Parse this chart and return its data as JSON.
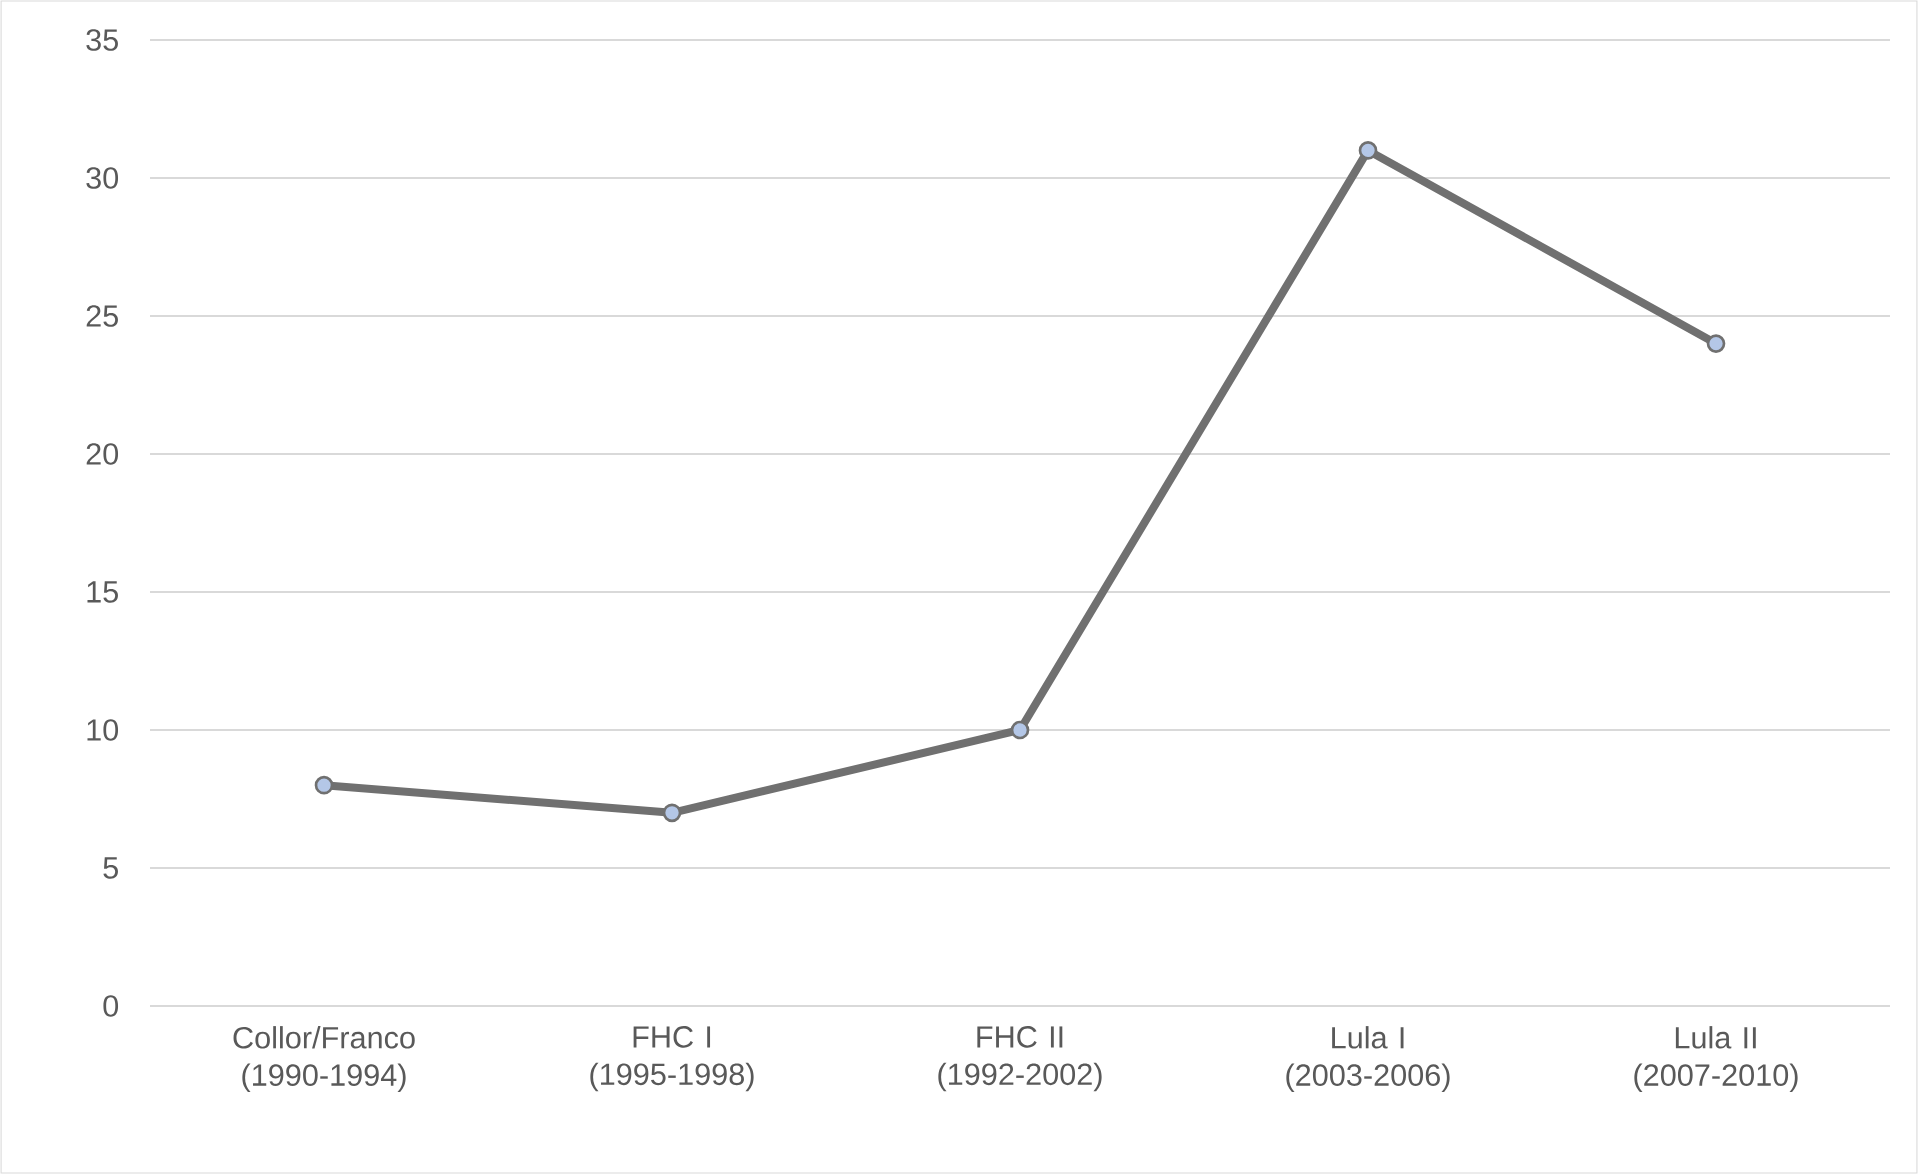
{
  "chart_data": {
    "type": "line",
    "categories": [
      "Collor/Franco (1990-1994)",
      "FHC I (1995-1998)",
      "FHC II (1992-2002)",
      "Lula I (2003-2006)",
      "Lula II (2007-2010)"
    ],
    "series": [
      {
        "color": "#707070",
        "values": [
          8,
          7,
          10,
          31,
          24
        ]
      }
    ],
    "ylim": [
      0,
      35
    ],
    "yticks": [
      0,
      5,
      10,
      15,
      20,
      25,
      30,
      35
    ],
    "grid": "y",
    "marker": "circle",
    "line_style": "solid"
  }
}
